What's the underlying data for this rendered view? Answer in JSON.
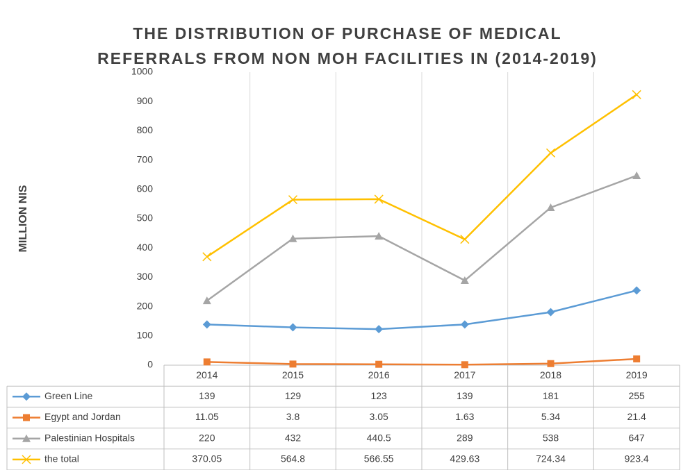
{
  "chart_data": {
    "type": "line",
    "title": [
      "THE DISTRIBUTION OF PURCHASE OF MEDICAL",
      "REFERRALS FROM NON MOH FACILITIES IN (2014-2019)"
    ],
    "y_label": "MILLION NIS",
    "categories": [
      "2014",
      "2015",
      "2016",
      "2017",
      "2018",
      "2019"
    ],
    "series": [
      {
        "name": "Green Line",
        "color": "#5b9bd5",
        "marker": "diamond",
        "values": [
          139,
          129,
          123,
          139,
          181,
          255
        ]
      },
      {
        "name": "Egypt and Jordan",
        "color": "#ed7d31",
        "marker": "square",
        "values": [
          11.05,
          3.8,
          3.05,
          1.63,
          5.34,
          21.4
        ]
      },
      {
        "name": "Palestinian Hospitals",
        "color": "#a5a5a5",
        "marker": "triangle",
        "values": [
          220,
          432,
          440.5,
          289,
          538,
          647
        ]
      },
      {
        "name": "the total",
        "color": "#ffc000",
        "marker": "x",
        "values": [
          370.05,
          564.8,
          566.55,
          429.63,
          724.34,
          923.4
        ]
      }
    ],
    "ylim": [
      0,
      1000
    ],
    "yticks": [
      0,
      100,
      200,
      300,
      400,
      500,
      600,
      700,
      800,
      900,
      1000
    ],
    "data_table": true
  }
}
